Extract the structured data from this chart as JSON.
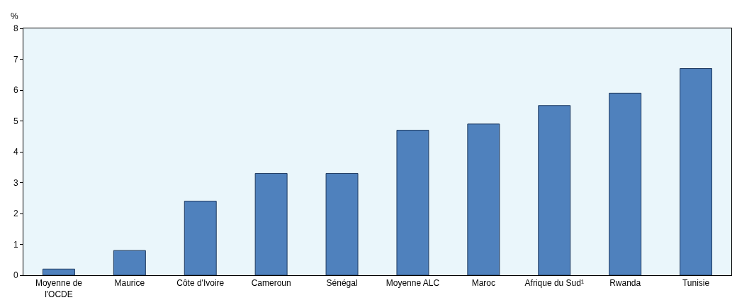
{
  "chart_data": {
    "type": "bar",
    "ylabel": "%",
    "categories": [
      "Moyenne de l'OCDE",
      "Maurice",
      "Côte d'Ivoire",
      "Cameroun",
      "Sénégal",
      "Moyenne ALC",
      "Maroc",
      "Afrique du Sud¹",
      "Rwanda",
      "Tunisie"
    ],
    "values": [
      0.2,
      0.8,
      2.4,
      3.3,
      3.3,
      4.7,
      4.9,
      5.5,
      5.9,
      6.7
    ],
    "color": "#4f81bd",
    "ylim": [
      0,
      8
    ],
    "yticks": [
      0,
      1,
      2,
      3,
      4,
      5,
      6,
      7,
      8
    ],
    "grid": false
  }
}
